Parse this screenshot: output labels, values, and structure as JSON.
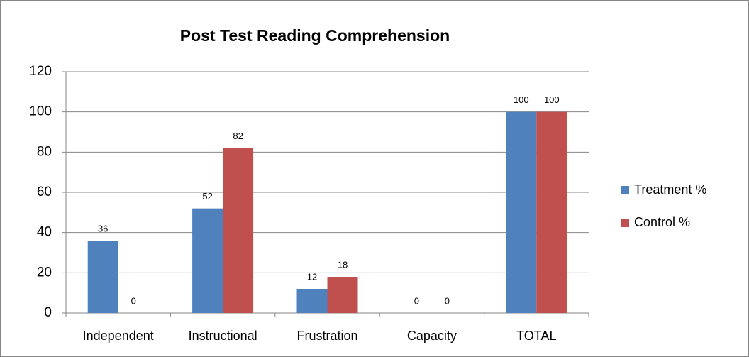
{
  "chart_data": {
    "type": "bar",
    "title": "Post Test Reading Comprehension",
    "categories": [
      "Independent",
      "Instructional",
      "Frustration",
      "Capacity",
      "TOTAL"
    ],
    "series": [
      {
        "name": "Treatment %",
        "color": "#4f81bd",
        "values": [
          36,
          52,
          12,
          0,
          100
        ]
      },
      {
        "name": "Control %",
        "color": "#c0504d",
        "values": [
          0,
          82,
          18,
          0,
          100
        ]
      }
    ],
    "ylim": [
      0,
      120
    ],
    "yticks": [
      0,
      20,
      40,
      60,
      80,
      100,
      120
    ],
    "grid": true,
    "legend": "right"
  }
}
